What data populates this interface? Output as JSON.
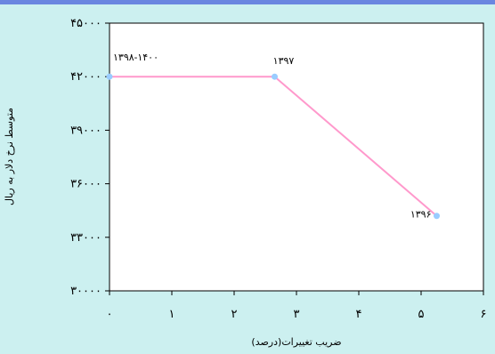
{
  "chart_data": {
    "type": "line",
    "xlabel": "ضریب تغییرات(درصد)",
    "ylabel": "متوسط نرخ دلار به ریال",
    "xlim": [
      0,
      6
    ],
    "ylim": [
      30000,
      45000
    ],
    "x_ticks": [
      "۰",
      "۱",
      "۲",
      "۳",
      "۴",
      "۵",
      "۶"
    ],
    "y_ticks": [
      "۳۰۰۰۰",
      "۳۳۰۰۰",
      "۳۶۰۰۰",
      "۳۹۰۰۰",
      "۴۲۰۰۰",
      "۴۵۰۰۰"
    ],
    "points": [
      {
        "x": 0.0,
        "y": 42000,
        "label": "۱۳۹۸-۱۴۰۰"
      },
      {
        "x": 2.65,
        "y": 42000,
        "label": "۱۳۹۷"
      },
      {
        "x": 5.25,
        "y": 34200,
        "label": "۱۳۹۶"
      }
    ],
    "grid": false,
    "colors": {
      "line": "#ff99cc",
      "marker": "#99ccff",
      "background": "#ccf0f0",
      "plot_area": "#ffffff",
      "top_bar": "#6a86e0"
    }
  }
}
